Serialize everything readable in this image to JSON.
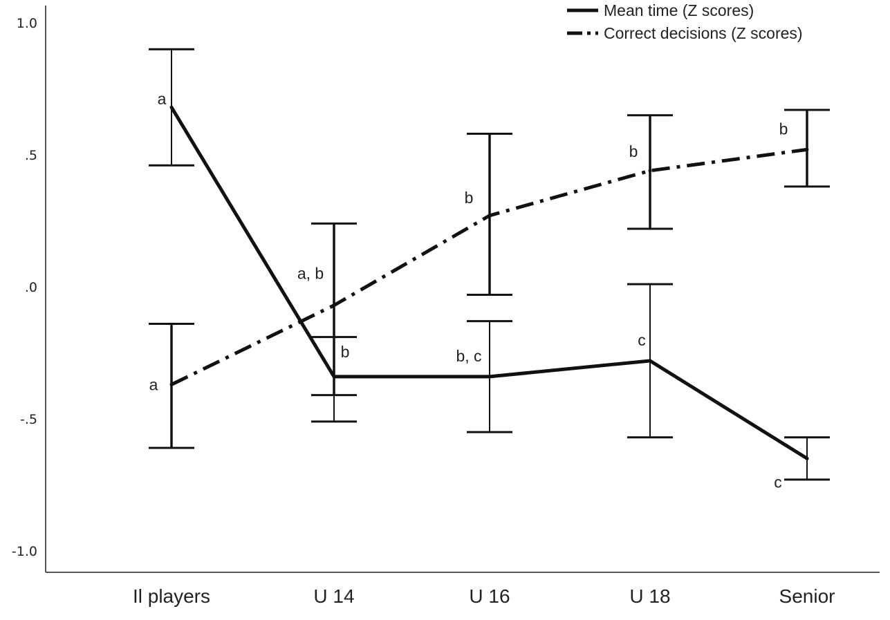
{
  "chart_data": {
    "type": "line",
    "categories": [
      "Il players",
      "U 14",
      "U 16",
      "U 18",
      "Senior"
    ],
    "ylim": [
      -1.1,
      1.05
    ],
    "yticks": [
      {
        "value": 1.0,
        "label": "1.0"
      },
      {
        "value": 0.5,
        "label": ".5"
      },
      {
        "value": 0.0,
        "label": ".0"
      },
      {
        "value": -0.5,
        "label": "-.5"
      },
      {
        "value": -1.0,
        "label": "-1.0"
      }
    ],
    "grid": false,
    "legend_position": "top-right",
    "series": [
      {
        "name": "Mean time (Z scores)",
        "style": "solid",
        "values": [
          0.68,
          -0.34,
          -0.34,
          -0.28,
          -0.65
        ],
        "err_low": [
          0.46,
          -0.51,
          -0.55,
          -0.57,
          -0.73
        ],
        "err_high": [
          0.9,
          -0.19,
          -0.13,
          0.01,
          -0.57
        ],
        "group_labels": [
          "a",
          "b",
          "b, c",
          "c",
          "c"
        ]
      },
      {
        "name": "Correct decisions (Z scores)",
        "style": "dashdot",
        "values": [
          -0.37,
          -0.07,
          0.27,
          0.44,
          0.52
        ],
        "err_low": [
          -0.61,
          -0.41,
          -0.03,
          0.22,
          0.38
        ],
        "err_high": [
          -0.14,
          0.24,
          0.58,
          0.65,
          0.67
        ],
        "group_labels": [
          "a",
          "a, b",
          "b",
          "b",
          "b"
        ]
      }
    ],
    "colors": {
      "line": "#111111",
      "axis": "#555555"
    }
  }
}
